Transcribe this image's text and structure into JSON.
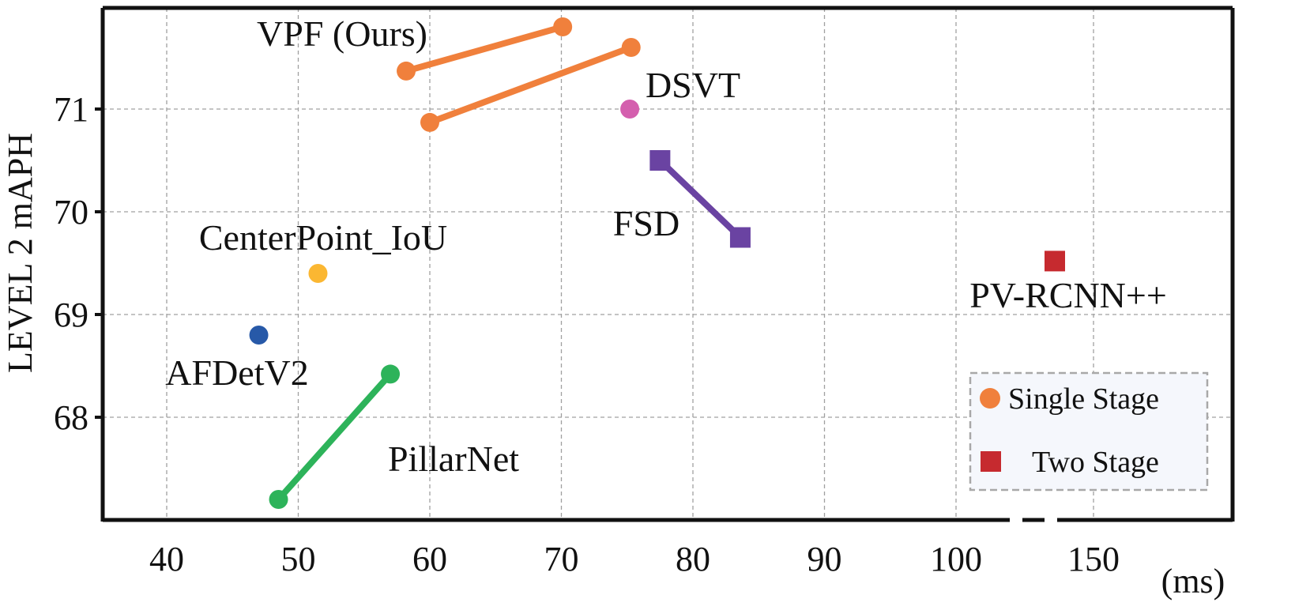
{
  "chart_data": {
    "type": "scatter",
    "title": "",
    "xlabel": "(ms)",
    "ylabel": "LEVEL 2 mAPH",
    "xlim": [
      35,
      155
    ],
    "ylim": [
      67,
      72
    ],
    "x_axis_break": "between 100 and 150",
    "x_ticks": [
      40,
      50,
      60,
      70,
      80,
      90,
      100,
      150
    ],
    "x_tick_labels": [
      "40",
      "50",
      "60",
      "70",
      "80",
      "90",
      "100",
      "150"
    ],
    "y_ticks": [
      68,
      69,
      70,
      71
    ],
    "y_tick_labels": [
      "68",
      "69",
      "70",
      "71"
    ],
    "grid": true,
    "legend_position": "bottom-right",
    "legend": [
      {
        "label": "Single Stage",
        "marker": "circle",
        "color": "#F0803C"
      },
      {
        "label": "Two Stage",
        "marker": "square",
        "color": "#C62A2F"
      }
    ],
    "series": [
      {
        "name": "VPF (Ours)",
        "marker": "circle",
        "color": "#F0803C",
        "points": [
          [
            58.2,
            71.37
          ],
          [
            70.1,
            71.8
          ]
        ]
      },
      {
        "name": "VPF (Ours)",
        "marker": "circle",
        "color": "#F0803C",
        "points": [
          [
            60.0,
            70.87
          ],
          [
            75.3,
            71.6
          ]
        ]
      },
      {
        "name": "DSVT",
        "marker": "circle",
        "color": "#D45FAE",
        "points": [
          [
            75.2,
            71.0
          ]
        ]
      },
      {
        "name": "FSD",
        "marker": "square",
        "color": "#6A43A2",
        "points": [
          [
            77.5,
            70.5
          ],
          [
            83.6,
            69.75
          ]
        ]
      },
      {
        "name": "CenterPoint_IoU",
        "marker": "circle",
        "color": "#FBB732",
        "points": [
          [
            51.5,
            69.4
          ]
        ]
      },
      {
        "name": "AFDetV2",
        "marker": "circle",
        "color": "#2759A8",
        "points": [
          [
            47.0,
            68.8
          ]
        ]
      },
      {
        "name": "PillarNet",
        "marker": "circle",
        "color": "#2DB35A",
        "points": [
          [
            48.5,
            67.2
          ],
          [
            57.0,
            68.42
          ]
        ]
      },
      {
        "name": "PV-RCNN++",
        "marker": "square",
        "color": "#C62A2F",
        "points": [
          [
            136,
            69.52
          ]
        ]
      }
    ]
  }
}
